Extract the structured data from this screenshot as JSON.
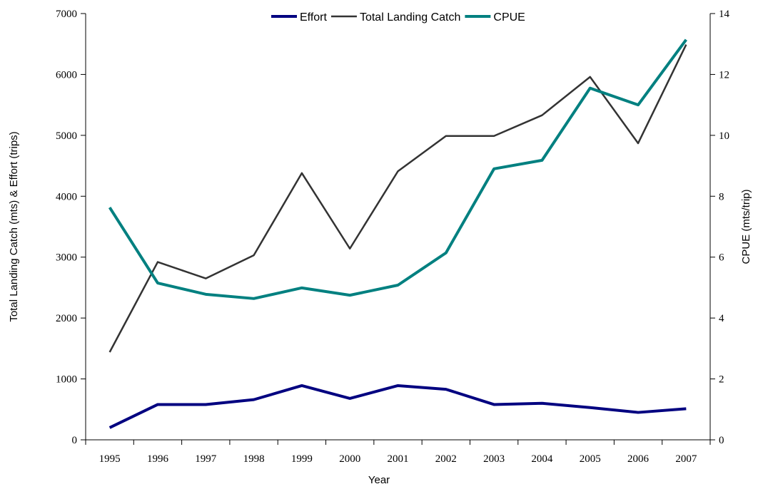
{
  "chart_data": {
    "type": "line",
    "x_label": "Year",
    "y_label": "Total Landing Catch (mts) & Effort (trips)",
    "y2_label": "CPUE (mts/trip)",
    "categories": [
      "1995",
      "1996",
      "1997",
      "1998",
      "1999",
      "2000",
      "2001",
      "2002",
      "2003",
      "2004",
      "2005",
      "2006",
      "2007"
    ],
    "series": [
      {
        "name": "Effort",
        "color": "#000080",
        "values": [
          200,
          580,
          580,
          660,
          890,
          680,
          890,
          830,
          580,
          600,
          530,
          450,
          510
        ]
      },
      {
        "name": "Total Landing Catch",
        "color": "#333333",
        "values": [
          1440,
          2920,
          2650,
          3030,
          4380,
          3140,
          4410,
          4990,
          4990,
          5330,
          5960,
          4870,
          6490
        ]
      },
      {
        "name": "CPUE",
        "color": "#008080",
        "axis": "y2",
        "values": [
          7.63,
          5.15,
          4.78,
          4.64,
          4.99,
          4.75,
          5.08,
          6.14,
          8.9,
          9.18,
          11.55,
          11.0,
          13.14
        ]
      }
    ],
    "ylim": [
      0,
      7000
    ],
    "yticks": [
      0,
      1000,
      2000,
      3000,
      4000,
      5000,
      6000,
      7000
    ],
    "y2lim": [
      0,
      14
    ],
    "y2ticks": [
      0,
      2,
      4,
      6,
      8,
      10,
      12,
      14
    ],
    "legend": "top"
  }
}
